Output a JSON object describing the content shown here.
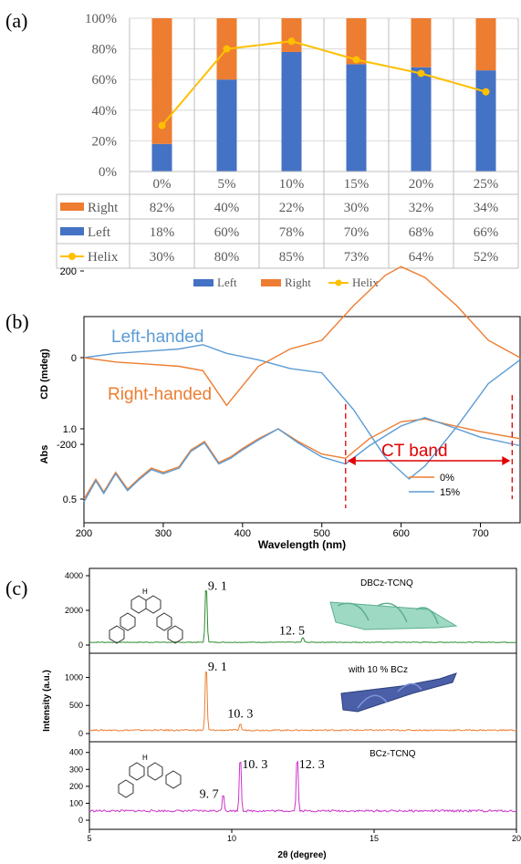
{
  "panel_labels": {
    "a": "(a)",
    "b": "(b)",
    "c": "(c)"
  },
  "chart_data": [
    {
      "type": "bar",
      "stacked": true,
      "categories": [
        "0%",
        "5%",
        "10%",
        "15%",
        "20%",
        "25%"
      ],
      "yticks": [
        "0%",
        "20%",
        "40%",
        "60%",
        "80%",
        "100%"
      ],
      "ylim": [
        0,
        100
      ],
      "series": [
        {
          "name": "Right",
          "type": "bar",
          "color": "#ED7D31",
          "values": [
            82,
            40,
            22,
            30,
            32,
            34
          ],
          "labels": [
            "82%",
            "40%",
            "22%",
            "30%",
            "32%",
            "34%"
          ]
        },
        {
          "name": "Left",
          "type": "bar",
          "color": "#4472C4",
          "values": [
            18,
            60,
            78,
            70,
            68,
            66
          ],
          "labels": [
            "18%",
            "60%",
            "78%",
            "70%",
            "68%",
            "66%"
          ]
        },
        {
          "name": "Helix",
          "type": "line",
          "color": "#FFC000",
          "values": [
            30,
            80,
            85,
            73,
            64,
            52
          ],
          "labels": [
            "30%",
            "80%",
            "85%",
            "73%",
            "64%",
            "52%"
          ]
        }
      ],
      "legend": [
        "Left",
        "Right",
        "Helix"
      ],
      "legend_position": "bottom",
      "data_table": true
    },
    {
      "type": "line",
      "xlabel": "Wavelength (nm)",
      "x_ticks": [
        "200",
        "300",
        "400",
        "500",
        "600",
        "700"
      ],
      "xlim": [
        200,
        750
      ],
      "top": {
        "ylabel": "CD (mdeg)",
        "y_ticks": [
          "200",
          "0",
          "-200"
        ],
        "ylim": [
          -300,
          250
        ],
        "series": [
          {
            "name": "Left-handed",
            "color": "#5B9BD5",
            "x": [
              200,
              240,
              280,
              320,
              350,
              380,
              420,
              460,
              500,
              540,
              580,
              610,
              630,
              670,
              710,
              750
            ],
            "y": [
              0,
              10,
              15,
              20,
              30,
              10,
              -5,
              -25,
              -35,
              -120,
              -230,
              -280,
              -250,
              -160,
              -60,
              -5
            ]
          },
          {
            "name": "Right-handed",
            "color": "#ED7D31",
            "x": [
              200,
              240,
              280,
              320,
              350,
              380,
              420,
              460,
              500,
              540,
              580,
              600,
              630,
              670,
              710,
              750
            ],
            "y": [
              0,
              -10,
              -15,
              -20,
              -30,
              -110,
              -20,
              20,
              40,
              120,
              190,
              210,
              185,
              120,
              40,
              0
            ]
          }
        ],
        "annotations": [
          "Left-handed",
          "Right-handed"
        ]
      },
      "bottom": {
        "ylabel": "Abs",
        "y_ticks": [
          "1.0",
          "0.5"
        ],
        "legend": [
          "0%",
          "15%"
        ],
        "series": [
          {
            "name": "0%",
            "color": "#ED7D31",
            "x": [
              200,
              215,
              225,
              240,
              255,
              270,
              285,
              300,
              320,
              335,
              352,
              370,
              385,
              400,
              420,
              445,
              470,
              500,
              530,
              560,
              600,
              630,
              660,
              700,
              750
            ],
            "y": [
              0.5,
              0.64,
              0.55,
              0.69,
              0.57,
              0.65,
              0.72,
              0.69,
              0.73,
              0.85,
              0.91,
              0.76,
              0.8,
              0.86,
              0.93,
              1.0,
              0.91,
              0.82,
              0.79,
              0.93,
              1.05,
              1.07,
              1.03,
              0.98,
              0.93
            ]
          },
          {
            "name": "15%",
            "color": "#5B9BD5",
            "x": [
              200,
              215,
              225,
              240,
              255,
              270,
              285,
              300,
              320,
              335,
              352,
              370,
              385,
              400,
              420,
              445,
              470,
              500,
              530,
              560,
              600,
              630,
              660,
              700,
              750
            ],
            "y": [
              0.48,
              0.63,
              0.54,
              0.68,
              0.56,
              0.64,
              0.71,
              0.68,
              0.72,
              0.84,
              0.9,
              0.75,
              0.79,
              0.85,
              0.92,
              1.0,
              0.9,
              0.8,
              0.75,
              0.88,
              1.02,
              1.08,
              1.02,
              0.94,
              0.88
            ]
          }
        ],
        "annotation": "CT band",
        "band_range": [
          530,
          740
        ]
      }
    },
    {
      "type": "line",
      "xlabel": "2θ (degree)",
      "ylabel": "Intensity (a.u.)",
      "xlim": [
        5,
        20
      ],
      "x_ticks": [
        "5",
        "10",
        "15",
        "20"
      ],
      "panels": [
        {
          "name": "DBCz-TCNQ",
          "color": "#2E8B2E",
          "y_ticks": [
            "4000",
            "2000",
            "0"
          ],
          "ylim": [
            0,
            4000
          ],
          "peaks": [
            {
              "x": 9.1,
              "y": 3600,
              "label": "9. 1"
            },
            {
              "x": 12.5,
              "y": 300,
              "label": "12. 5"
            }
          ],
          "label": "DBCz-TCNQ"
        },
        {
          "name": "with 10 % BCz",
          "color": "#ED7D31",
          "y_ticks": [
            "1000",
            "500",
            "0"
          ],
          "ylim": [
            0,
            1300
          ],
          "peaks": [
            {
              "x": 9.1,
              "y": 1250,
              "label": "9. 1"
            },
            {
              "x": 10.3,
              "y": 120,
              "label": "10. 3"
            }
          ],
          "label": "with 10 % BCz"
        },
        {
          "name": "BCz-TCNQ",
          "color": "#CC33CC",
          "y_ticks": [
            "400",
            "300",
            "200",
            "100",
            "0"
          ],
          "ylim": [
            0,
            420
          ],
          "peaks": [
            {
              "x": 9.7,
              "y": 110,
              "label": "9. 7"
            },
            {
              "x": 10.3,
              "y": 350,
              "label": "10. 3"
            },
            {
              "x": 12.3,
              "y": 350,
              "label": "12. 3"
            }
          ],
          "label": "BCz-TCNQ"
        }
      ]
    }
  ]
}
